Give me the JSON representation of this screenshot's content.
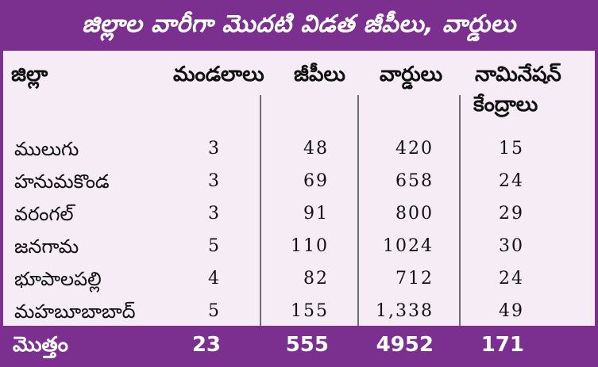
{
  "title": "జిల్లాల వారీగా మొదటి విడత జీపీలు, వార్డులు",
  "headers": {
    "district": "జిల్లా",
    "mandals": "మండలాలు",
    "gps": "జీపీలు",
    "wards": "వార్డులు",
    "nomination_line1": "నామినేషన్",
    "nomination_line2": "కేంద్రాలు"
  },
  "rows": [
    {
      "district": "ములుగు",
      "mandals": "3",
      "gps": "48",
      "wards": "420",
      "centers": "15"
    },
    {
      "district": "హనుమకొండ",
      "mandals": "3",
      "gps": "69",
      "wards": "658",
      "centers": "24"
    },
    {
      "district": "వరంగల్",
      "mandals": "3",
      "gps": "91",
      "wards": "800",
      "centers": "29"
    },
    {
      "district": "జనగామ",
      "mandals": "5",
      "gps": "110",
      "wards": "1024",
      "centers": "30"
    },
    {
      "district": "భూపాలపల్లి",
      "mandals": "4",
      "gps": "82",
      "wards": "712",
      "centers": "24"
    },
    {
      "district": "మహబూబాబాద్",
      "mandals": "5",
      "gps": "155",
      "wards": "1,338",
      "centers": "49"
    }
  ],
  "total": {
    "label": "మొత్తం",
    "mandals": "23",
    "gps": "555",
    "wards": "4952",
    "centers": "171"
  },
  "colors": {
    "purple": "#7b2f8e",
    "background": "#f5ecf5"
  }
}
